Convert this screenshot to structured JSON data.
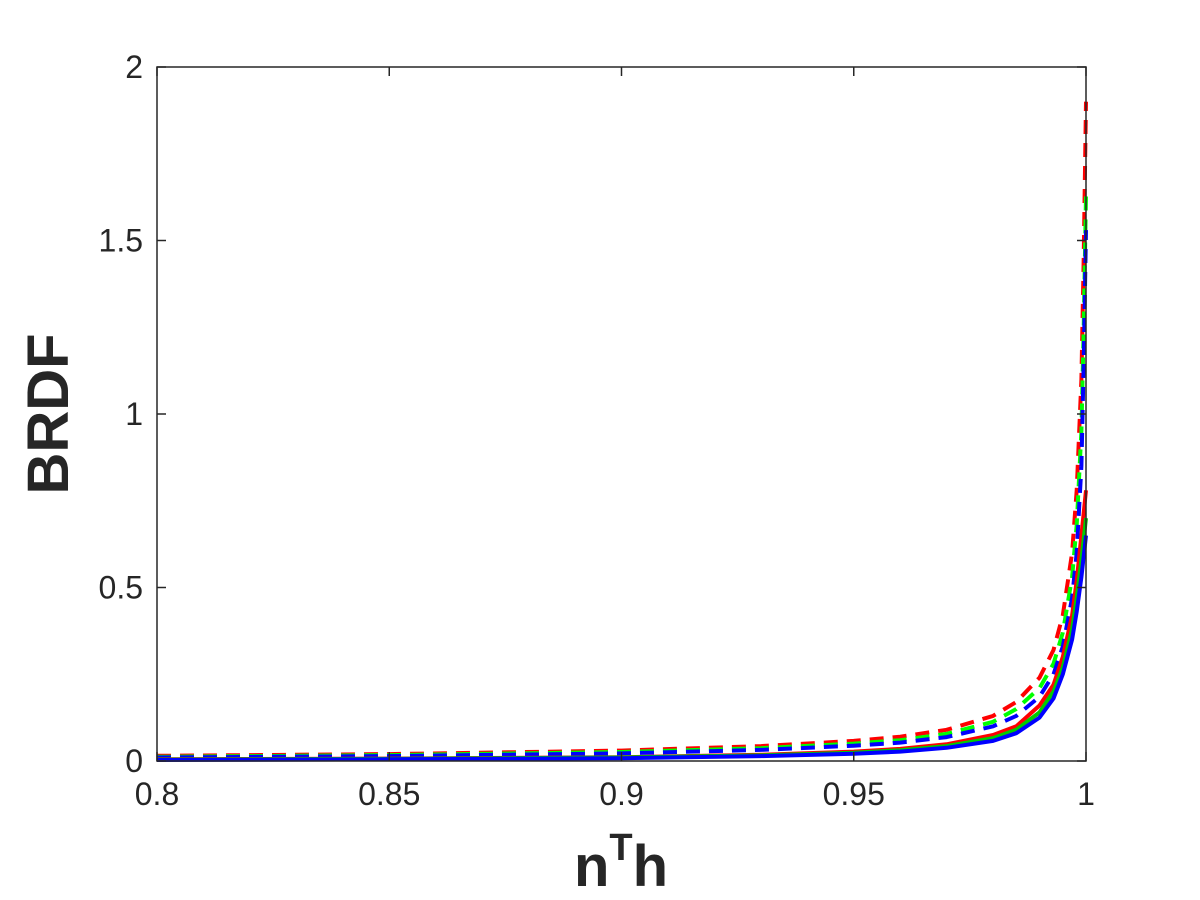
{
  "chart_data": {
    "type": "line",
    "title": "",
    "xlabel": {
      "base": "n",
      "sup": "T",
      "tail": "h"
    },
    "ylabel": "BRDF",
    "xlim": [
      0.8,
      1.0
    ],
    "ylim": [
      0,
      2
    ],
    "x_ticks": [
      0.8,
      0.85,
      0.9,
      0.95,
      1.0
    ],
    "x_tick_labels": [
      "0.8",
      "0.85",
      "0.9",
      "0.95",
      "1"
    ],
    "y_ticks": [
      0,
      0.5,
      1,
      1.5,
      2
    ],
    "y_tick_labels": [
      "0",
      "0.5",
      "1",
      "1.5",
      "2"
    ],
    "grid": false,
    "legend": "none",
    "series": [
      {
        "color": "#ff0000",
        "style": "solid",
        "points": [
          [
            0.8,
            0.005
          ],
          [
            0.85,
            0.007
          ],
          [
            0.9,
            0.011
          ],
          [
            0.93,
            0.018
          ],
          [
            0.95,
            0.027
          ],
          [
            0.96,
            0.035
          ],
          [
            0.97,
            0.048
          ],
          [
            0.98,
            0.075
          ],
          [
            0.985,
            0.1
          ],
          [
            0.99,
            0.16
          ],
          [
            0.993,
            0.22
          ],
          [
            0.995,
            0.3
          ],
          [
            0.997,
            0.42
          ],
          [
            0.998,
            0.52
          ],
          [
            0.999,
            0.65
          ],
          [
            1.0,
            0.78
          ]
        ]
      },
      {
        "color": "#00cc00",
        "style": "solid",
        "points": [
          [
            0.8,
            0.004
          ],
          [
            0.85,
            0.006
          ],
          [
            0.9,
            0.01
          ],
          [
            0.93,
            0.016
          ],
          [
            0.95,
            0.024
          ],
          [
            0.96,
            0.031
          ],
          [
            0.97,
            0.043
          ],
          [
            0.98,
            0.066
          ],
          [
            0.985,
            0.09
          ],
          [
            0.99,
            0.14
          ],
          [
            0.993,
            0.2
          ],
          [
            0.995,
            0.27
          ],
          [
            0.997,
            0.38
          ],
          [
            0.998,
            0.47
          ],
          [
            0.999,
            0.58
          ],
          [
            1.0,
            0.7
          ]
        ]
      },
      {
        "color": "#0000ff",
        "style": "solid",
        "points": [
          [
            0.8,
            0.003
          ],
          [
            0.85,
            0.005
          ],
          [
            0.9,
            0.008
          ],
          [
            0.93,
            0.014
          ],
          [
            0.95,
            0.021
          ],
          [
            0.96,
            0.027
          ],
          [
            0.97,
            0.038
          ],
          [
            0.98,
            0.058
          ],
          [
            0.985,
            0.08
          ],
          [
            0.99,
            0.125
          ],
          [
            0.993,
            0.18
          ],
          [
            0.995,
            0.25
          ],
          [
            0.997,
            0.35
          ],
          [
            0.998,
            0.43
          ],
          [
            0.999,
            0.53
          ],
          [
            1.0,
            0.65
          ]
        ]
      },
      {
        "color": "#ff0000",
        "style": "dashed",
        "points": [
          [
            0.8,
            0.015
          ],
          [
            0.85,
            0.02
          ],
          [
            0.9,
            0.03
          ],
          [
            0.93,
            0.043
          ],
          [
            0.95,
            0.058
          ],
          [
            0.96,
            0.07
          ],
          [
            0.97,
            0.09
          ],
          [
            0.98,
            0.13
          ],
          [
            0.985,
            0.17
          ],
          [
            0.99,
            0.24
          ],
          [
            0.993,
            0.32
          ],
          [
            0.995,
            0.42
          ],
          [
            0.997,
            0.6
          ],
          [
            0.998,
            0.78
          ],
          [
            0.999,
            1.1
          ],
          [
            0.9995,
            1.45
          ],
          [
            1.0,
            1.9
          ]
        ]
      },
      {
        "color": "#00ff00",
        "style": "dashed",
        "points": [
          [
            0.8,
            0.012
          ],
          [
            0.85,
            0.017
          ],
          [
            0.9,
            0.026
          ],
          [
            0.93,
            0.037
          ],
          [
            0.95,
            0.05
          ],
          [
            0.96,
            0.06
          ],
          [
            0.97,
            0.078
          ],
          [
            0.98,
            0.113
          ],
          [
            0.985,
            0.15
          ],
          [
            0.99,
            0.21
          ],
          [
            0.993,
            0.28
          ],
          [
            0.995,
            0.37
          ],
          [
            0.997,
            0.53
          ],
          [
            0.998,
            0.68
          ],
          [
            0.999,
            0.95
          ],
          [
            0.9995,
            1.25
          ],
          [
            1.0,
            1.63
          ]
        ]
      },
      {
        "color": "#0000ff",
        "style": "dashed",
        "points": [
          [
            0.8,
            0.01
          ],
          [
            0.85,
            0.014
          ],
          [
            0.9,
            0.022
          ],
          [
            0.93,
            0.032
          ],
          [
            0.95,
            0.044
          ],
          [
            0.96,
            0.053
          ],
          [
            0.97,
            0.069
          ],
          [
            0.98,
            0.1
          ],
          [
            0.985,
            0.13
          ],
          [
            0.99,
            0.185
          ],
          [
            0.993,
            0.25
          ],
          [
            0.995,
            0.33
          ],
          [
            0.997,
            0.47
          ],
          [
            0.998,
            0.6
          ],
          [
            0.999,
            0.85
          ],
          [
            0.9995,
            1.15
          ],
          [
            1.0,
            1.53
          ]
        ]
      }
    ]
  }
}
